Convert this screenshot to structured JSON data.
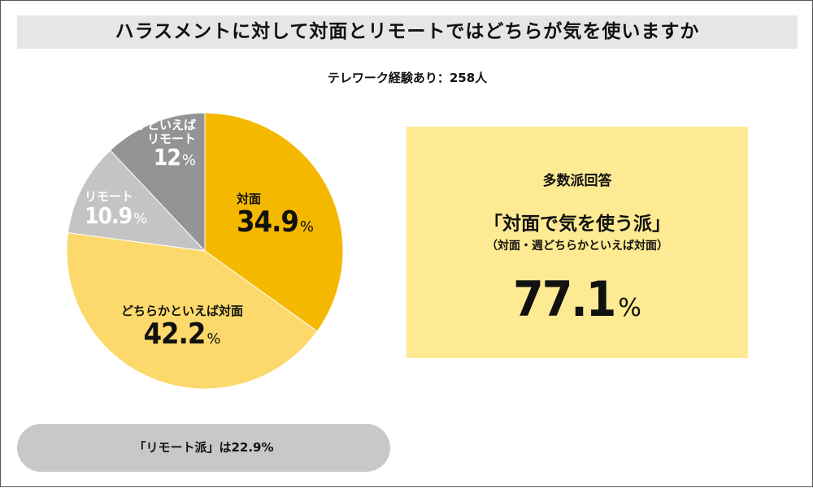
{
  "title": "ハラスメントに対して対面とリモートではどちらが気を使いますか",
  "subtitle": "テレワーク経験あり：258人",
  "chart_data": {
    "type": "pie",
    "start": "top",
    "direction": "clockwise",
    "slices": [
      {
        "label": "対面",
        "value": 34.9,
        "color": "#f5b800",
        "label_color": "#111111"
      },
      {
        "label": "どちらかといえば対面",
        "value": 42.2,
        "color": "#fcd96a",
        "label_color": "#111111"
      },
      {
        "label": "リモート",
        "value": 10.9,
        "color": "#c4c4c4",
        "label_color": "#ffffff"
      },
      {
        "label": "どちらかといえばリモート",
        "label_lines": [
          "どちらかといえば",
          "リモート"
        ],
        "value": 12.0,
        "color": "#949494",
        "label_color": "#ffffff"
      }
    ],
    "unit": "%"
  },
  "summary": {
    "heading": "多数派回答",
    "main": "「対面で気を使う派」",
    "sub": "（対面・週どちらかといえば対面）",
    "value": "77.1",
    "unit": "%"
  },
  "remote_note": "「リモート派」は22.9%"
}
